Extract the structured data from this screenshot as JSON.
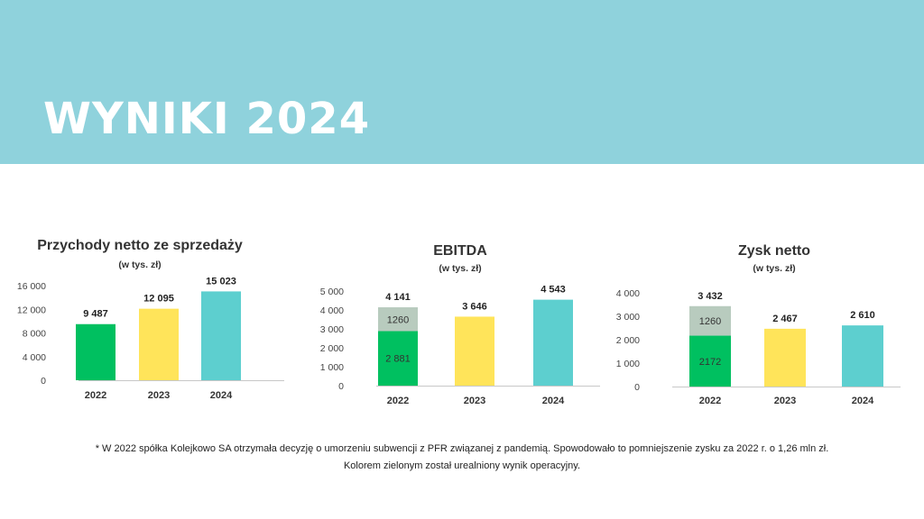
{
  "header": {
    "title": "WYNIKI 2024"
  },
  "chart_data": [
    {
      "type": "bar",
      "title": "Przychody netto ze sprzedaży",
      "subtitle": "(w tys. zł)",
      "categories": [
        "2022",
        "2023",
        "2024"
      ],
      "values": [
        9487,
        12095,
        15023
      ],
      "value_labels": [
        "9 487",
        "12 095",
        "15 023"
      ],
      "ylim": [
        0,
        16000
      ],
      "yticks": [
        0,
        4000,
        8000,
        12000,
        16000
      ],
      "ytick_labels": [
        "0",
        "4 000",
        "8 000",
        "12 000",
        "16 000"
      ],
      "colors": [
        "#00c060",
        "#ffe45a",
        "#5dcfcf"
      ],
      "grid": false
    },
    {
      "type": "bar",
      "title": "EBITDA",
      "subtitle": "(w tys. zł)",
      "categories": [
        "2022",
        "2023",
        "2024"
      ],
      "values": [
        4141,
        3646,
        4543
      ],
      "value_labels": [
        "4 141",
        "3 646",
        "4 543"
      ],
      "stack_2022": [
        {
          "value": 2881,
          "label": "2 881",
          "color": "#00c060"
        },
        {
          "value": 1260,
          "label": "1260",
          "color": "#b8cbbe"
        }
      ],
      "ylim": [
        0,
        5000
      ],
      "yticks": [
        0,
        1000,
        2000,
        3000,
        4000,
        5000
      ],
      "ytick_labels": [
        "0",
        "1 000",
        "2 000",
        "3 000",
        "4 000",
        "5 000"
      ],
      "colors": [
        "#00c060",
        "#ffe45a",
        "#5dcfcf"
      ],
      "grid": false
    },
    {
      "type": "bar",
      "title": "Zysk netto",
      "subtitle": "(w tys. zł)",
      "categories": [
        "2022",
        "2023",
        "2024"
      ],
      "values": [
        3432,
        2467,
        2610
      ],
      "value_labels": [
        "3 432",
        "2 467",
        "2 610"
      ],
      "stack_2022": [
        {
          "value": 2172,
          "label": "2172",
          "color": "#00c060"
        },
        {
          "value": 1260,
          "label": "1260",
          "color": "#b8cbbe"
        }
      ],
      "ylim": [
        0,
        4000
      ],
      "yticks": [
        0,
        1000,
        2000,
        3000,
        4000
      ],
      "ytick_labels": [
        "0",
        "1 000",
        "2 000",
        "3 000",
        "4 000"
      ],
      "colors": [
        "#00c060",
        "#ffe45a",
        "#5dcfcf"
      ],
      "grid": false
    }
  ],
  "footnote": {
    "line1": "* W 2022 spółka Kolejkowo SA otrzymała decyzję o umorzeniu subwencji z PFR związanej z pandemią. Spowodowało to pomniejszenie zysku za 2022 r. o 1,26 mln zł.",
    "line2": "Kolorem zielonym został urealniony wynik operacyjny."
  }
}
